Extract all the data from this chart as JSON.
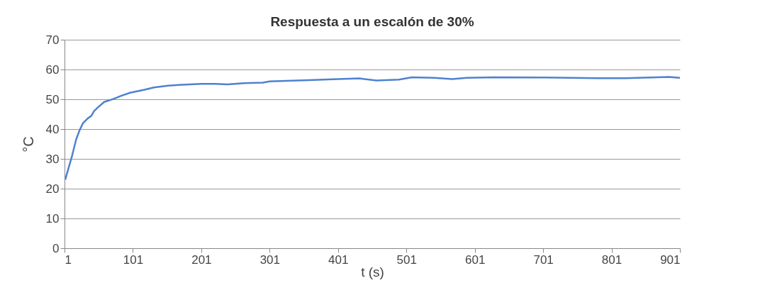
{
  "chart_data": {
    "type": "line",
    "title": "Respuesta a un escalón de 30%",
    "xlabel": "t (s)",
    "ylabel": "°C",
    "x": [
      2,
      7,
      12,
      18,
      23,
      28,
      35,
      40,
      44,
      49,
      59,
      70,
      77,
      83,
      97,
      118,
      132,
      153,
      173,
      201,
      222,
      239,
      264,
      291,
      301,
      358,
      401,
      433,
      457,
      490,
      509,
      542,
      568,
      589,
      629,
      702,
      782,
      821,
      885,
      901
    ],
    "series": [
      {
        "color": "#4f81d0",
        "values": [
          23,
          27,
          31,
          36.5,
          39.6,
          42,
          43.6,
          44.4,
          46,
          47.1,
          49.1,
          49.9,
          50.5,
          51.1,
          52.2,
          53.2,
          54,
          54.6,
          54.9,
          55.2,
          55.2,
          55,
          55.4,
          55.6,
          56,
          56.4,
          56.8,
          57,
          56.3,
          56.6,
          57.4,
          57.2,
          56.8,
          57.2,
          57.4,
          57.3,
          57.1,
          57.1,
          57.5,
          57.2
        ]
      }
    ],
    "xlim": [
      1,
      901
    ],
    "xticks": [
      1,
      101,
      201,
      301,
      401,
      501,
      601,
      701,
      801,
      901
    ],
    "ylim": [
      0,
      70
    ],
    "yticks": [
      0,
      10,
      20,
      30,
      40,
      50,
      60,
      70
    ],
    "grid": "y",
    "marker": "none",
    "line_style": "solid"
  }
}
